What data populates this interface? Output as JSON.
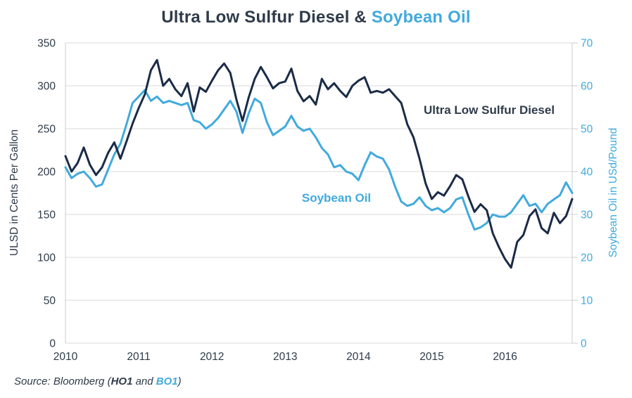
{
  "header": {
    "title_dark": "Ultra Low Sulfur Diesel & ",
    "title_blue": "Soybean Oil"
  },
  "colors": {
    "navy_line": "#1b2b47",
    "blue_line": "#41aadd",
    "text_dark": "#2e3b49",
    "text_blue": "#41aadd",
    "grid": "#d8dadc",
    "spine": "#c9cdd2",
    "background": "#ffffff"
  },
  "source": {
    "prefix": "Source: Bloomberg (",
    "ticker1": "HO1",
    "middle": " and ",
    "ticker2": "BO1",
    "suffix": ")"
  },
  "chart_data": {
    "type": "line",
    "title": "Ultra Low Sulfur Diesel & Soybean Oil",
    "x_axis": {
      "ticks": [
        2010,
        2011,
        2012,
        2013,
        2014,
        2015,
        2016
      ]
    },
    "left_axis": {
      "title": "ULSD in Cents Per Gallon",
      "ticks": [
        0,
        50,
        100,
        150,
        200,
        250,
        300,
        350
      ],
      "ylim": [
        0,
        350
      ]
    },
    "right_axis": {
      "title": "Soybean Oil in USd/Pound",
      "ticks": [
        0,
        10,
        20,
        30,
        40,
        50,
        60,
        70
      ],
      "ylim": [
        0,
        70
      ]
    },
    "grid": true,
    "x_start_year": 2010.0,
    "x_step_years": 0.0833333,
    "series": [
      {
        "name": "Ultra Low Sulfur Diesel",
        "axis": "left",
        "units": "cents per gallon",
        "color_key": "navy_line",
        "values": [
          218,
          200,
          210,
          228,
          208,
          196,
          205,
          222,
          234,
          215,
          235,
          256,
          274,
          290,
          318,
          330,
          300,
          308,
          296,
          288,
          303,
          270,
          298,
          293,
          306,
          318,
          326,
          315,
          284,
          259,
          286,
          308,
          322,
          310,
          297,
          303,
          305,
          320,
          294,
          282,
          288,
          278,
          308,
          296,
          303,
          294,
          287,
          300,
          306,
          310,
          292,
          294,
          292,
          296,
          288,
          280,
          255,
          240,
          215,
          186,
          168,
          176,
          172,
          183,
          196,
          191,
          171,
          153,
          162,
          155,
          128,
          112,
          98,
          88,
          118,
          126,
          148,
          156,
          134,
          128,
          152,
          140,
          148,
          168
        ]
      },
      {
        "name": "Soybean Oil",
        "axis": "right",
        "units": "USd per pound",
        "color_key": "blue_line",
        "values": [
          41,
          38.5,
          39.5,
          40,
          38.5,
          36.5,
          37,
          40.5,
          44,
          46.5,
          51,
          56,
          57.5,
          59,
          56.5,
          57.5,
          56,
          56.5,
          56,
          55.5,
          56,
          52,
          51.5,
          50,
          51,
          52.5,
          54.5,
          56.5,
          54,
          49,
          53.5,
          57,
          56,
          51.5,
          48.5,
          49.5,
          50.5,
          53,
          50.5,
          49.5,
          50,
          48,
          45.5,
          44,
          41,
          41.5,
          40,
          39.5,
          38,
          41.5,
          44.5,
          43.5,
          43,
          40.5,
          36.5,
          33,
          32,
          32.5,
          34,
          32,
          31,
          31.5,
          30.5,
          31.5,
          33.5,
          34,
          30,
          26.5,
          27,
          28,
          30,
          29.5,
          29.5,
          30.5,
          32.5,
          34.5,
          32,
          32.5,
          30.5,
          32.5,
          33.5,
          34.5,
          37.5,
          35
        ]
      }
    ]
  }
}
